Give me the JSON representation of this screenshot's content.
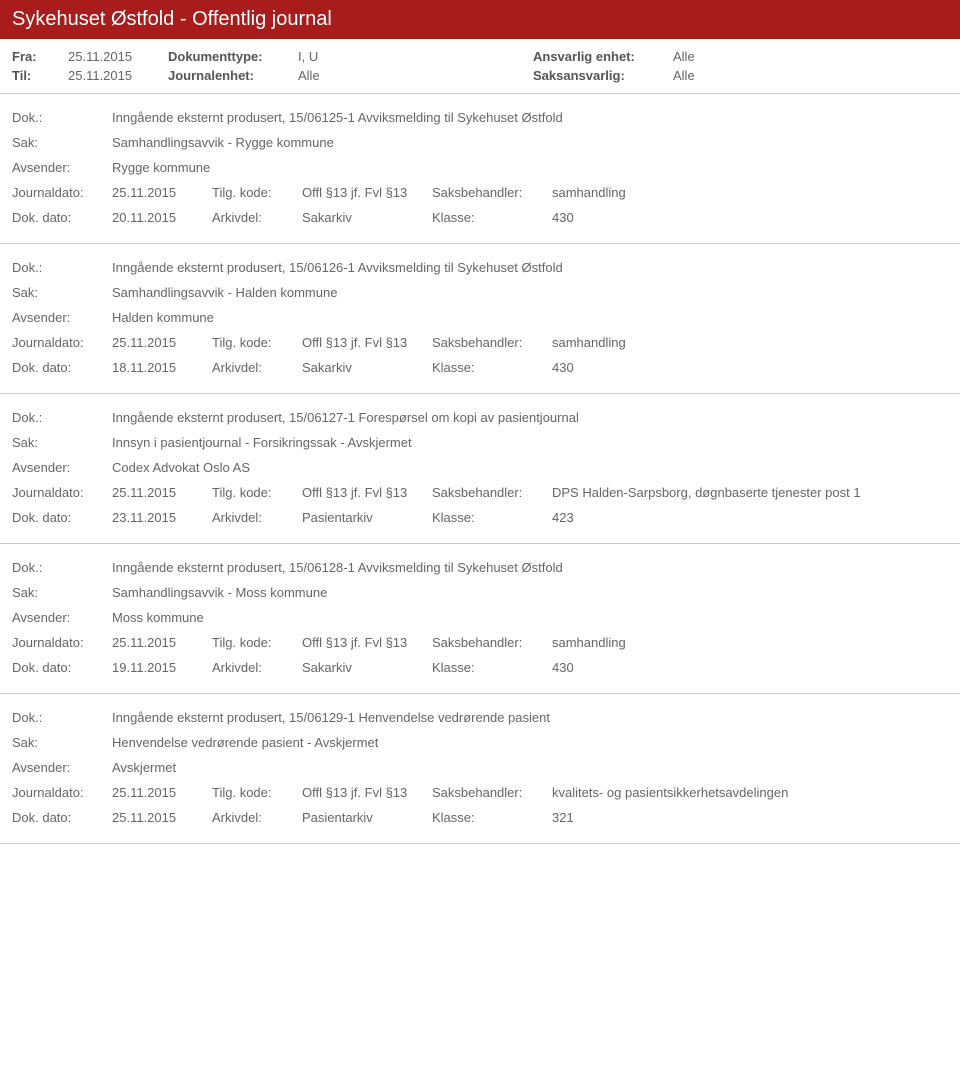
{
  "header": {
    "title": "Sykehuset Østfold - Offentlig journal"
  },
  "meta": {
    "fra_label": "Fra:",
    "fra_value": "25.11.2015",
    "til_label": "Til:",
    "til_value": "25.11.2015",
    "doktype_label": "Dokumenttype:",
    "doktype_value": "I, U",
    "journalenhet_label": "Journalenhet:",
    "journalenhet_value": "Alle",
    "ansvarlig_label": "Ansvarlig enhet:",
    "ansvarlig_value": "Alle",
    "saksansvarlig_label": "Saksansvarlig:",
    "saksansvarlig_value": "Alle"
  },
  "labels": {
    "dok": "Dok.:",
    "sak": "Sak:",
    "avsender": "Avsender:",
    "journaldato": "Journaldato:",
    "tilgkode": "Tilg. kode:",
    "saksbehandler": "Saksbehandler:",
    "dokdato": "Dok. dato:",
    "arkivdel": "Arkivdel:",
    "klasse": "Klasse:"
  },
  "entries": [
    {
      "dok": "Inngående eksternt produsert, 15/06125-1 Avviksmelding til Sykehuset Østfold",
      "sak": "Samhandlingsavvik - Rygge kommune",
      "avsender": "Rygge kommune",
      "journaldato": "25.11.2015",
      "tilgkode": "Offl §13 jf. Fvl §13",
      "saksbehandler": "samhandling",
      "dokdato": "20.11.2015",
      "arkivdel": "Sakarkiv",
      "klasse": "430"
    },
    {
      "dok": "Inngående eksternt produsert, 15/06126-1 Avviksmelding til Sykehuset Østfold",
      "sak": "Samhandlingsavvik - Halden kommune",
      "avsender": "Halden kommune",
      "journaldato": "25.11.2015",
      "tilgkode": "Offl §13 jf. Fvl §13",
      "saksbehandler": "samhandling",
      "dokdato": "18.11.2015",
      "arkivdel": "Sakarkiv",
      "klasse": "430"
    },
    {
      "dok": "Inngående eksternt produsert, 15/06127-1 Forespørsel om kopi av pasientjournal",
      "sak": "Innsyn i pasientjournal - Forsikringssak - Avskjermet",
      "avsender": "Codex Advokat Oslo AS",
      "journaldato": "25.11.2015",
      "tilgkode": "Offl §13 jf. Fvl §13",
      "saksbehandler": "DPS Halden-Sarpsborg, døgnbaserte tjenester post 1",
      "dokdato": "23.11.2015",
      "arkivdel": "Pasientarkiv",
      "klasse": "423"
    },
    {
      "dok": "Inngående eksternt produsert, 15/06128-1 Avviksmelding til Sykehuset Østfold",
      "sak": "Samhandlingsavvik - Moss kommune",
      "avsender": "Moss kommune",
      "journaldato": "25.11.2015",
      "tilgkode": "Offl §13 jf. Fvl §13",
      "saksbehandler": "samhandling",
      "dokdato": "19.11.2015",
      "arkivdel": "Sakarkiv",
      "klasse": "430"
    },
    {
      "dok": "Inngående eksternt produsert, 15/06129-1 Henvendelse vedrørende pasient",
      "sak": "Henvendelse vedrørende pasient - Avskjermet",
      "avsender": "Avskjermet",
      "journaldato": "25.11.2015",
      "tilgkode": "Offl §13 jf. Fvl §13",
      "saksbehandler": "kvalitets- og pasientsikkerhetsavdelingen",
      "dokdato": "25.11.2015",
      "arkivdel": "Pasientarkiv",
      "klasse": "321"
    }
  ]
}
